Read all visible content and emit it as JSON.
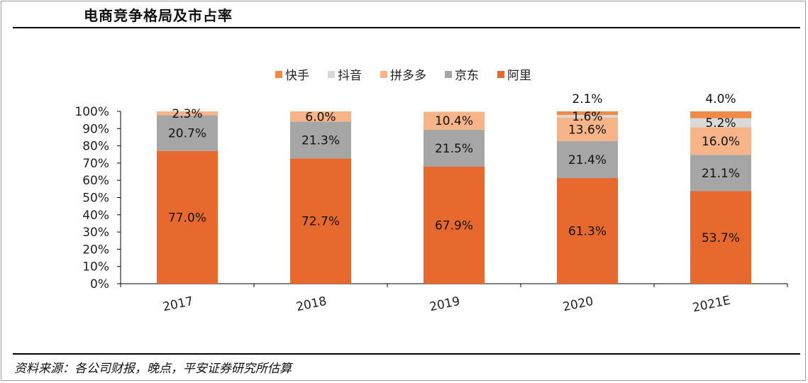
{
  "title": "电商竞争格局及市占率",
  "source": "资料来源：各公司财报，晚点，平安证券研究所估算",
  "chart_data": {
    "type": "bar",
    "stacked": true,
    "title": "电商竞争格局及市占率",
    "categories": [
      "2017",
      "2018",
      "2019",
      "2020",
      "2021E"
    ],
    "yticks": [
      "0%",
      "10%",
      "20%",
      "30%",
      "40%",
      "50%",
      "60%",
      "70%",
      "80%",
      "90%",
      "100%"
    ],
    "ylim": [
      0,
      100
    ],
    "legend_position": "top",
    "series": [
      {
        "name": "阿里",
        "color": "#E8692E",
        "values": [
          77.0,
          72.7,
          67.9,
          61.3,
          53.7
        ],
        "labels": [
          "77.0%",
          "72.7%",
          "67.9%",
          "61.3%",
          "53.7%"
        ]
      },
      {
        "name": "京东",
        "color": "#A6A6A6",
        "values": [
          20.7,
          21.3,
          21.5,
          21.4,
          21.1
        ],
        "labels": [
          "20.7%",
          "21.3%",
          "21.5%",
          "21.4%",
          "21.1%"
        ]
      },
      {
        "name": "拼多多",
        "color": "#F6B488",
        "values": [
          2.3,
          6.0,
          10.4,
          13.6,
          16.0
        ],
        "labels": [
          "2.3%",
          "6.0%",
          "10.4%",
          "13.6%",
          "16.0%"
        ]
      },
      {
        "name": "抖音",
        "color": "#D9D9D9",
        "values": [
          0,
          0,
          0,
          1.6,
          5.2
        ],
        "labels": [
          "",
          "",
          "",
          "1.6%",
          "5.2%"
        ]
      },
      {
        "name": "快手",
        "color": "#F08A47",
        "values": [
          0,
          0,
          0,
          2.1,
          4.0
        ],
        "labels": [
          "",
          "",
          "",
          "2.1%",
          "4.0%"
        ]
      }
    ],
    "legend_order": [
      "快手",
      "抖音",
      "拼多多",
      "京东",
      "阿里"
    ]
  }
}
